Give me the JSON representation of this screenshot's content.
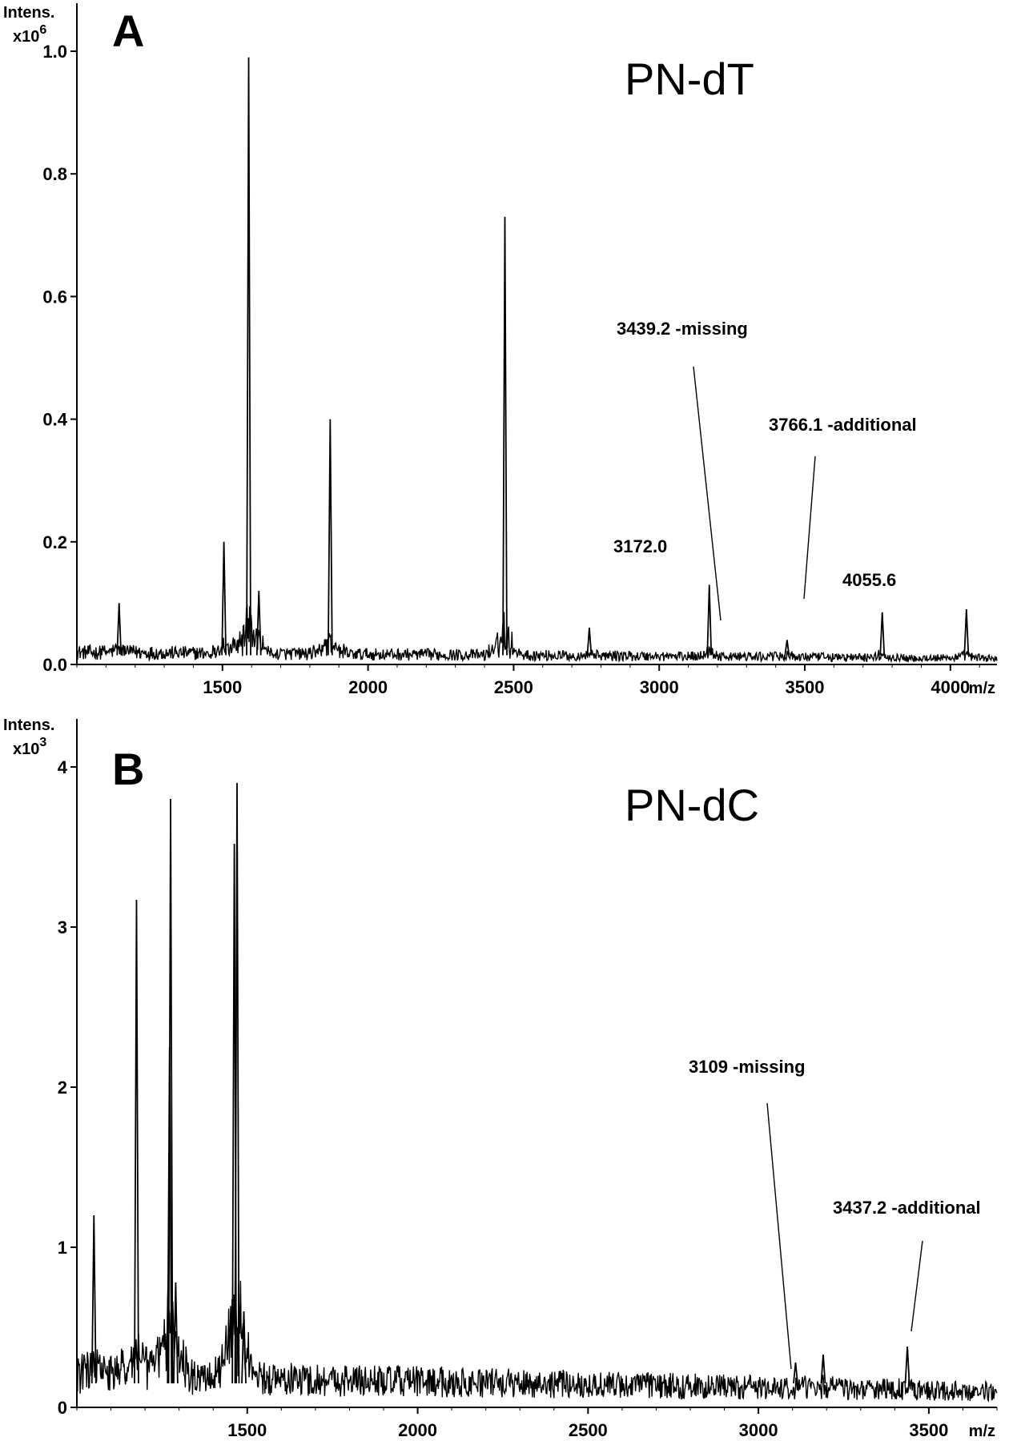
{
  "chart_data": [
    {
      "type": "line",
      "panel_label": "A",
      "title": "PN-dT",
      "ylabel": "Intens.",
      "yunit": "x10",
      "yunit_exp": "6",
      "xlabel": "m/z",
      "xlim": [
        1000,
        4160
      ],
      "ylim": [
        0,
        1.0
      ],
      "xticks": [
        "1500",
        "2000",
        "2500",
        "3000",
        "3500",
        "4000"
      ],
      "yticks": [
        "0.0",
        "0.2",
        "0.4",
        "0.6",
        "0.8",
        "1.0"
      ],
      "baseline": 0.015,
      "peaks": [
        {
          "x": 1145,
          "y": 0.1
        },
        {
          "x": 1505,
          "y": 0.2
        },
        {
          "x": 1590,
          "y": 0.99
        },
        {
          "x": 1625,
          "y": 0.12
        },
        {
          "x": 1870,
          "y": 0.4
        },
        {
          "x": 2470,
          "y": 0.73
        },
        {
          "x": 2760,
          "y": 0.06
        },
        {
          "x": 3172,
          "y": 0.13
        },
        {
          "x": 3439,
          "y": 0.04
        },
        {
          "x": 3766,
          "y": 0.085
        },
        {
          "x": 4055,
          "y": 0.09
        }
      ],
      "annotations": [
        {
          "text": "3172.0",
          "x": 3172,
          "y": 0.13,
          "leader": false
        },
        {
          "text": "3439.2 -missing",
          "x": 3439,
          "y": 0.04,
          "leader": true
        },
        {
          "text": "3766.1 -additional",
          "x": 3766,
          "y": 0.085,
          "leader": true
        },
        {
          "text": "4055.6",
          "x": 4055,
          "y": 0.09,
          "leader": false
        }
      ]
    },
    {
      "type": "line",
      "panel_label": "B",
      "title": "PN-dC",
      "ylabel": "Intens.",
      "yunit": "x10",
      "yunit_exp": "3",
      "xlabel": "m/z",
      "xlim": [
        1000,
        3700
      ],
      "ylim": [
        0,
        4
      ],
      "xticks": [
        "1500",
        "2000",
        "2500",
        "3000",
        "3500"
      ],
      "yticks": [
        "0",
        "1",
        "2",
        "3",
        "4"
      ],
      "baseline": 0.15,
      "peaks": [
        {
          "x": 1050,
          "y": 1.2
        },
        {
          "x": 1175,
          "y": 3.17
        },
        {
          "x": 1275,
          "y": 3.8
        },
        {
          "x": 1272,
          "y": 2.25
        },
        {
          "x": 1290,
          "y": 0.78
        },
        {
          "x": 1462,
          "y": 3.52
        },
        {
          "x": 1470,
          "y": 3.9
        },
        {
          "x": 1490,
          "y": 0.6
        },
        {
          "x": 3109,
          "y": 0.28
        },
        {
          "x": 3190,
          "y": 0.33
        },
        {
          "x": 3437,
          "y": 0.38
        }
      ],
      "annotations": [
        {
          "text": "3109 -missing",
          "x": 3109,
          "y": 0.28,
          "leader": true
        },
        {
          "text": "3437.2 -additional",
          "x": 3437,
          "y": 0.38,
          "leader": true
        }
      ]
    }
  ]
}
